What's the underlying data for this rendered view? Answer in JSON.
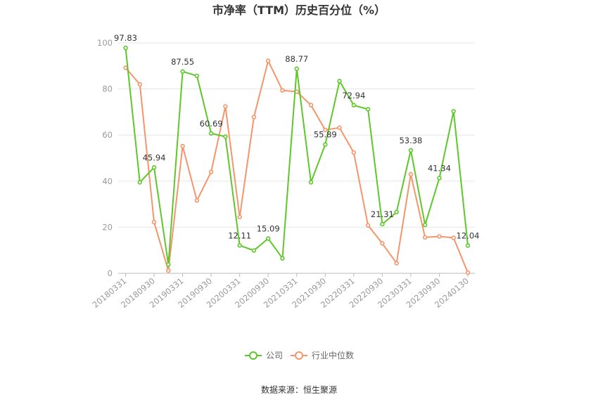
{
  "chart_data": {
    "type": "line",
    "title": "市净率（TTM）历史百分位（%）",
    "xlabel": "",
    "ylabel": "",
    "ylim": [
      0,
      100
    ],
    "yticks": [
      0,
      20,
      40,
      60,
      80,
      100
    ],
    "grid": true,
    "legend_position": "bottom",
    "x": [
      "20180331",
      "20180630",
      "20180930",
      "20181231",
      "20190331",
      "20190630",
      "20190930",
      "20191231",
      "20200331",
      "20200630",
      "20200930",
      "20201231",
      "20210331",
      "20210630",
      "20210930",
      "20211231",
      "20220331",
      "20220630",
      "20220930",
      "20221231",
      "20230331",
      "20230630",
      "20230930",
      "20231231",
      "20240130"
    ],
    "x_tick_labels": [
      "20180331",
      "20180930",
      "20190331",
      "20190930",
      "20200331",
      "20200930",
      "20210331",
      "20210930",
      "20220331",
      "20220930",
      "20230331",
      "20230930",
      "20240130"
    ],
    "series": [
      {
        "name": "公司",
        "color": "#5ec72a",
        "values": [
          97.83,
          39.5,
          45.94,
          3.8,
          87.55,
          85.7,
          60.69,
          59.3,
          12.11,
          9.9,
          15.09,
          6.5,
          88.77,
          39.5,
          55.89,
          83.4,
          72.94,
          71.2,
          21.31,
          26.6,
          53.38,
          21.0,
          41.34,
          70.3,
          12.04
        ],
        "labels": {
          "0": "97.83",
          "2": "45.94",
          "4": "87.55",
          "6": "60.69",
          "8": "12.11",
          "10": "15.09",
          "12": "88.77",
          "14": "55.89",
          "16": "72.94",
          "18": "21.31",
          "20": "53.38",
          "22": "41.34",
          "24": "12.04"
        }
      },
      {
        "name": "行业中位数",
        "color": "#f5956b",
        "values": [
          89.2,
          82.0,
          22.2,
          1.2,
          55.2,
          31.6,
          44.0,
          72.4,
          24.4,
          67.8,
          92.2,
          79.4,
          78.8,
          73.0,
          62.2,
          63.2,
          52.4,
          20.8,
          13.0,
          4.4,
          43.0,
          15.6,
          16.0,
          15.4,
          0.3
        ]
      }
    ]
  },
  "footer": {
    "source": "数据来源：恒生聚源"
  }
}
